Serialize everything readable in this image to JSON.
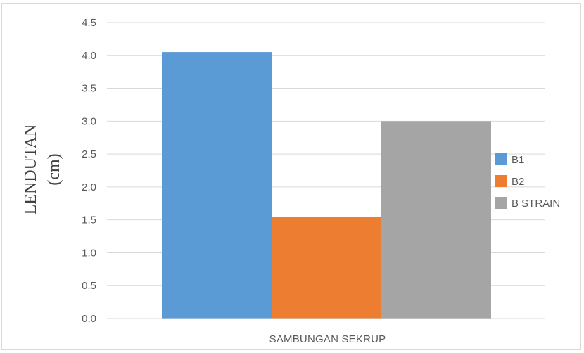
{
  "chart_data": {
    "type": "bar",
    "categories": [
      "SAMBUNGAN SEKRUP"
    ],
    "series": [
      {
        "name": "B1",
        "values": [
          4.05
        ],
        "color": "#5b9bd5"
      },
      {
        "name": "B2",
        "values": [
          1.55
        ],
        "color": "#ed7d31"
      },
      {
        "name": "B STRAIN",
        "values": [
          3.0
        ],
        "color": "#a5a5a5"
      }
    ],
    "ylabel_lines": [
      "LENDUTAN",
      "(cm)"
    ],
    "xlabel": "",
    "ylim": [
      0,
      4.5
    ],
    "yticks": [
      "0.0",
      "0.5",
      "1.0",
      "1.5",
      "2.0",
      "2.5",
      "3.0",
      "3.5",
      "4.0",
      "4.5"
    ],
    "grid": true,
    "legend_position": "right",
    "gridline_color": "#d9d9d9"
  }
}
